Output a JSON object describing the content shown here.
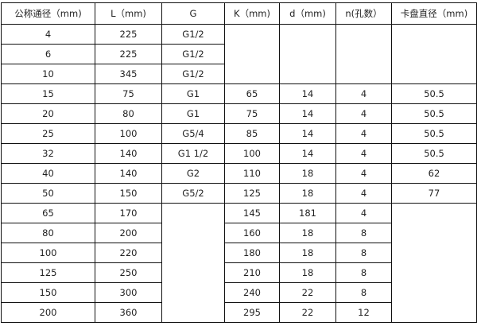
{
  "headers": [
    "公称通径（mm)",
    "L（mm)",
    "G",
    "K（mm)",
    "d（mm)",
    "n(孔数）",
    "卡盘直径（mm)"
  ],
  "rows": [
    [
      "4",
      "225",
      "G1/2",
      "",
      "",
      "",
      ""
    ],
    [
      "6",
      "225",
      "G1/2"
    ],
    [
      "10",
      "345",
      "G1/2"
    ],
    [
      "15",
      "75",
      "G1",
      "65",
      "14",
      "4",
      "50.5"
    ],
    [
      "20",
      "80",
      "G1",
      "75",
      "14",
      "4",
      "50.5"
    ],
    [
      "25",
      "100",
      "G5/4",
      "85",
      "14",
      "4",
      "50.5"
    ],
    [
      "32",
      "140",
      "G1  1/2",
      "100",
      "14",
      "4",
      "50.5"
    ],
    [
      "40",
      "140",
      "G2",
      "110",
      "18",
      "4",
      "62"
    ],
    [
      "50",
      "150",
      "G5/2",
      "125",
      "18",
      "4",
      "77"
    ],
    [
      "65",
      "170",
      "",
      "145",
      "181",
      "4",
      ""
    ],
    [
      "80",
      "200",
      "160",
      "18",
      "8"
    ],
    [
      "100",
      "220",
      "180",
      "18",
      "8"
    ],
    [
      "125",
      "250",
      "210",
      "18",
      "8"
    ],
    [
      "150",
      "300",
      "240",
      "22",
      "8"
    ],
    [
      "200",
      "360",
      "295",
      "22",
      "12"
    ]
  ]
}
